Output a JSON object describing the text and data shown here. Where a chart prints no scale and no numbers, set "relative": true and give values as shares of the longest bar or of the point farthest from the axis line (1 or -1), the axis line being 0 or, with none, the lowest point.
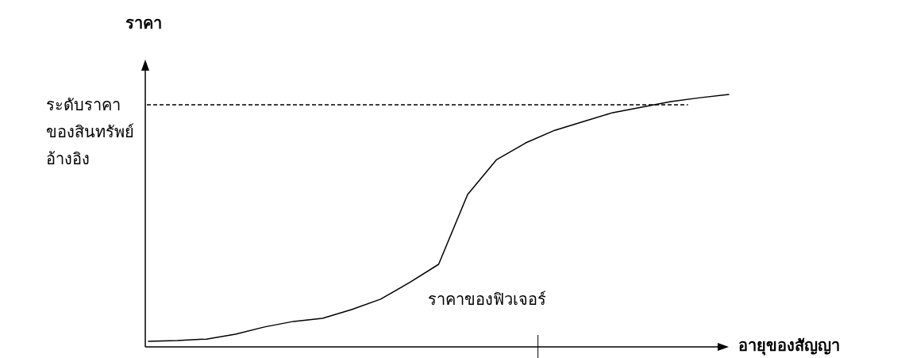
{
  "chart_data": {
    "type": "line",
    "relative": true,
    "ylabel": "ราคา",
    "xlabel": "อายุของสัญญา",
    "categories": [
      null,
      null,
      null,
      null,
      null,
      null,
      null,
      null,
      null,
      null,
      null,
      null,
      null,
      null,
      null,
      null,
      null,
      null,
      null,
      null,
      null
    ],
    "series": [
      {
        "name": "ราคาของฟิวเจอร์",
        "color": "#000000",
        "values": [
          0.022,
          0.025,
          0.031,
          0.05,
          0.079,
          0.101,
          0.113,
          0.148,
          0.189,
          0.255,
          0.327,
          0.604,
          0.742,
          0.808,
          0.858,
          0.893,
          0.928,
          0.95,
          0.972,
          0.987,
          1
        ]
      }
    ],
    "ref_lines": [
      {
        "axis": "y",
        "value": 0.959,
        "label": "ระดับราคาของสินทรัพย์อ้างอิง",
        "line_style": "dashed",
        "color": "#000000"
      }
    ]
  }
}
